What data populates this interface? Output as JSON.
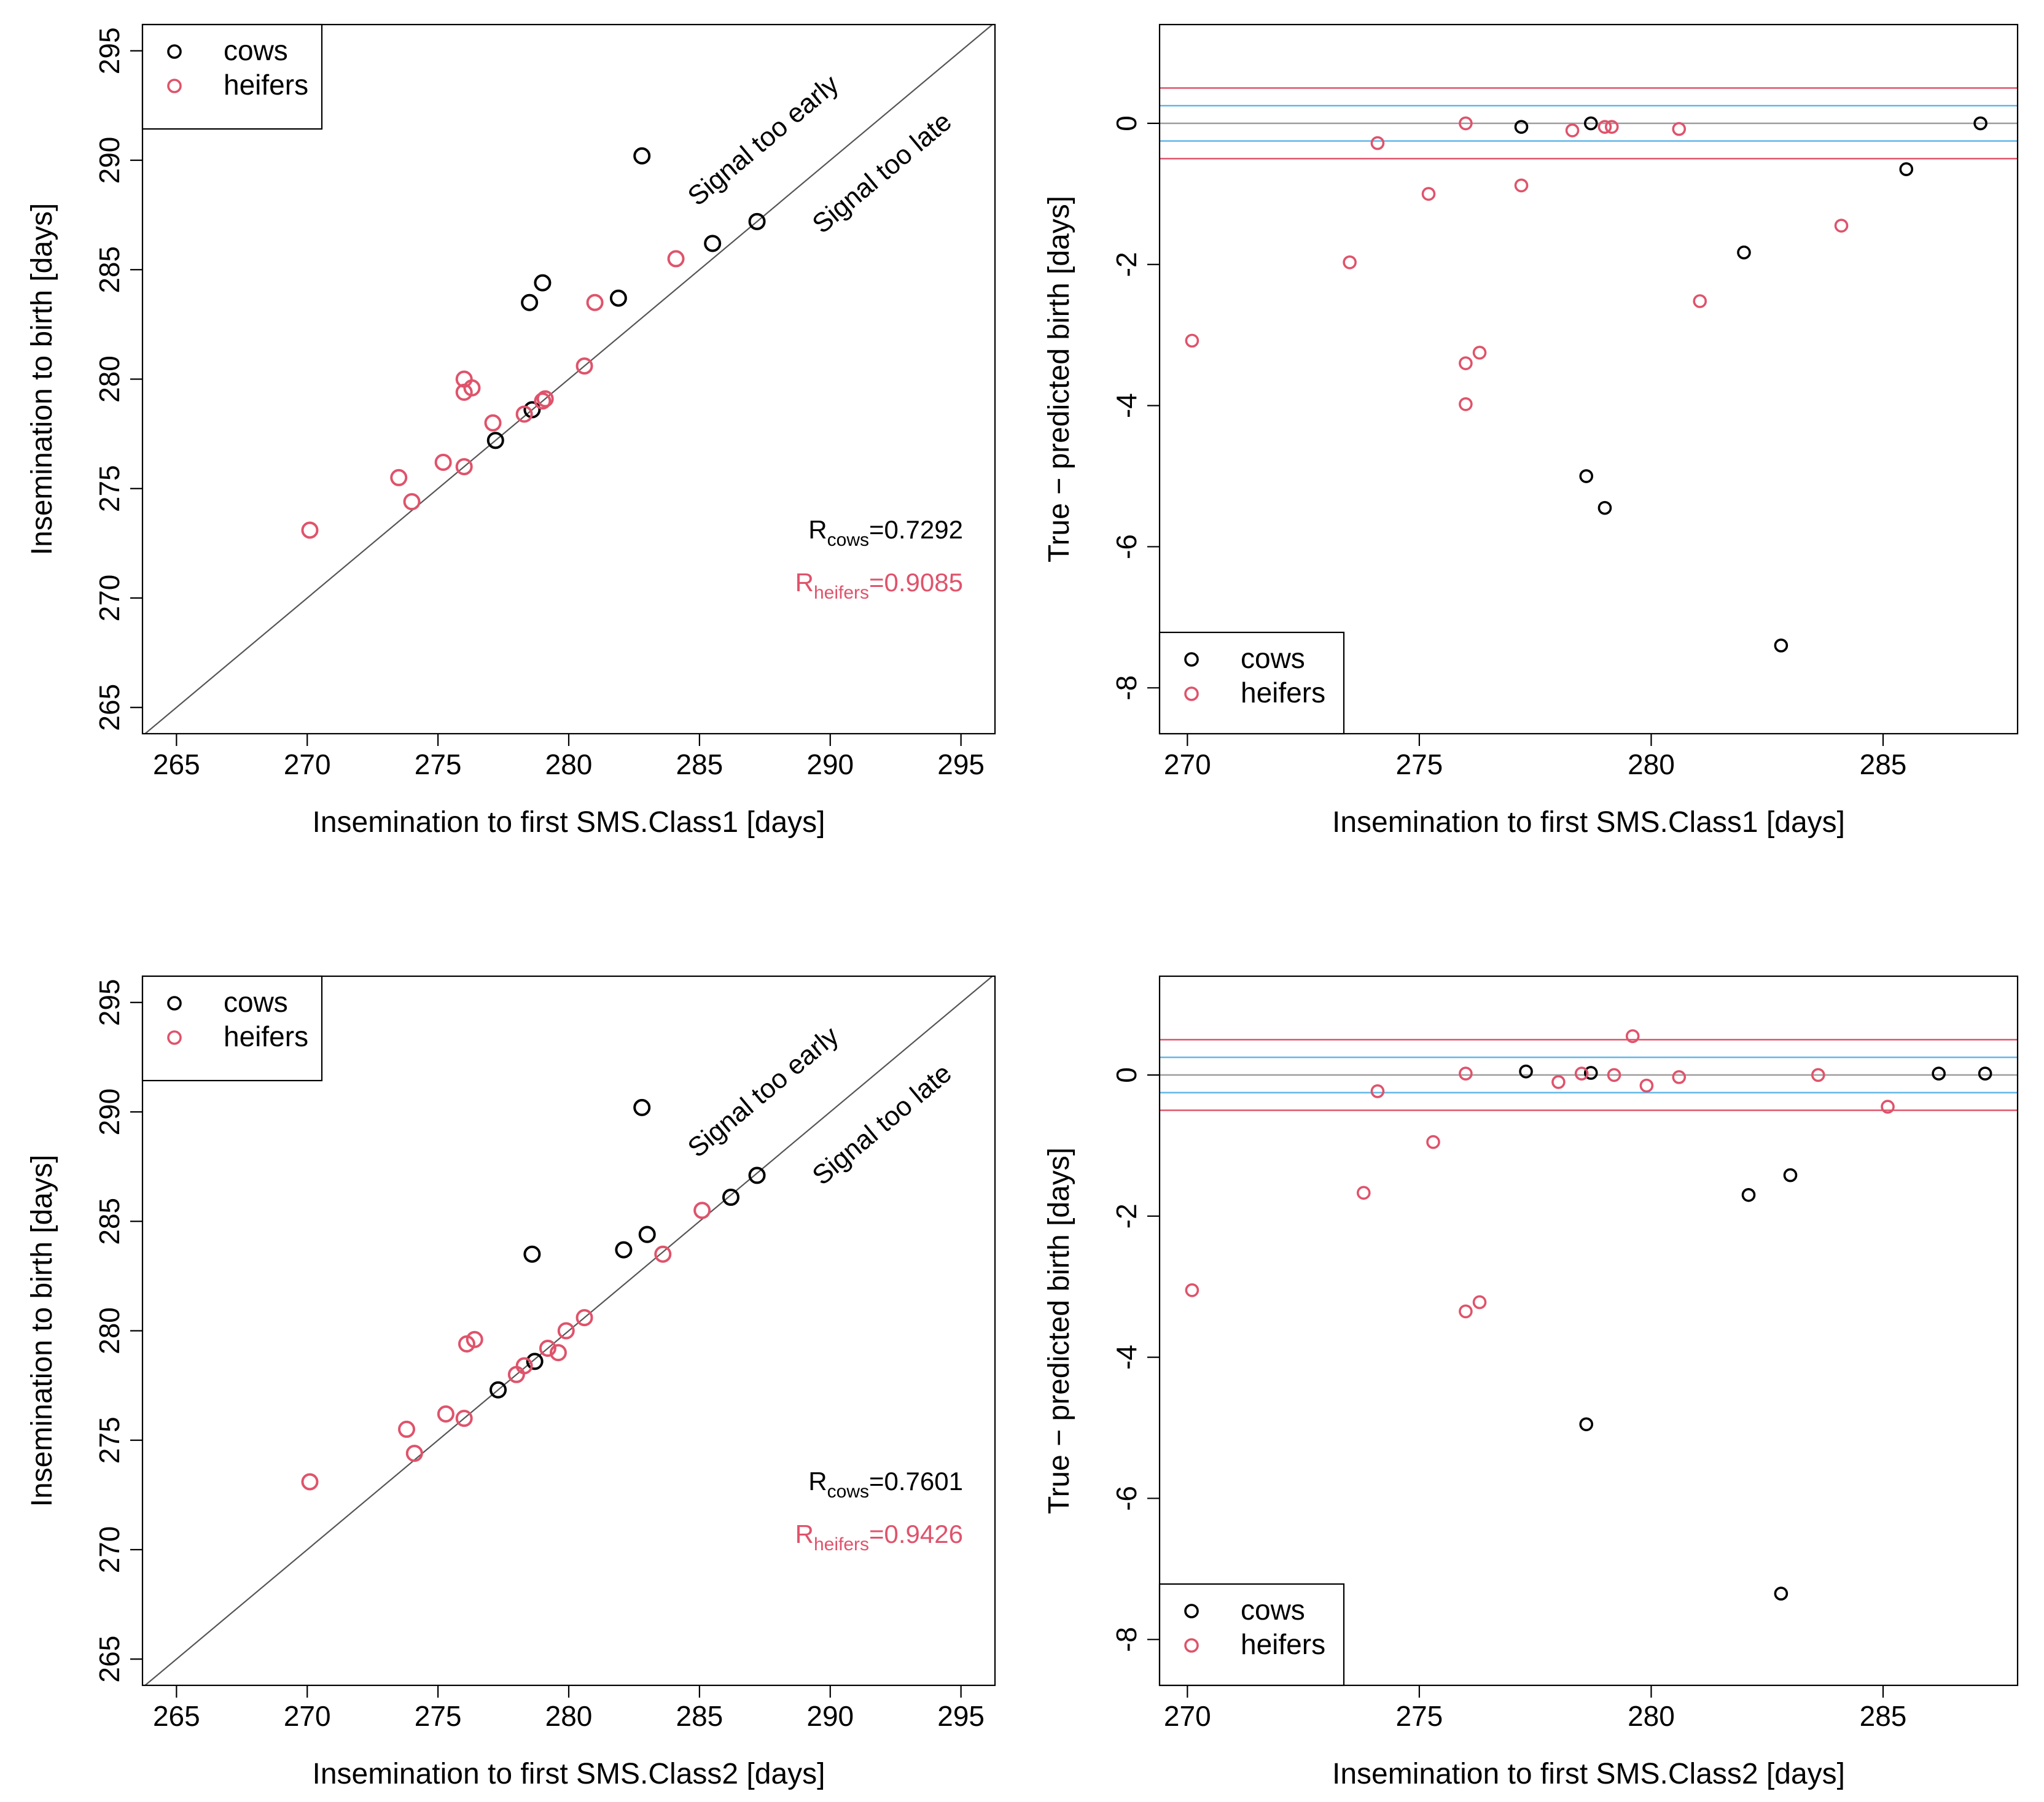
{
  "colors": {
    "cows": "#000000",
    "heifers": "#DF536B",
    "ref_line": "#555555",
    "inner_band": "#61B6E8",
    "outer_band": "#DF536B",
    "zero_line": "#9E9E9E"
  },
  "chart_data": [
    {
      "id": "scatter-class1",
      "type": "scatter",
      "xlabel": "Insemination to first SMS.Class1 [days]",
      "ylabel": "Insemination to birth [days]",
      "xlim": [
        263.7,
        296.3
      ],
      "ylim": [
        263.8,
        296.2
      ],
      "xticks": [
        265,
        270,
        275,
        280,
        285,
        290,
        295
      ],
      "yticks": [
        265,
        270,
        275,
        280,
        285,
        290,
        295
      ],
      "identity_line": true,
      "annotations": {
        "early": "Signal too early",
        "late": "Signal too late"
      },
      "legend": {
        "position": "top-left",
        "cows": "cows",
        "heifers": "heifers"
      },
      "stats": {
        "cows": {
          "sym": "R",
          "sub": "cows",
          "val": "=0.7292"
        },
        "heifers": {
          "sym": "R",
          "sub": "heifers",
          "val": "=0.9085"
        }
      },
      "series": [
        {
          "name": "cows",
          "points": [
            [
              282.8,
              290.2
            ],
            [
              285.5,
              286.2
            ],
            [
              287.2,
              287.2
            ],
            [
              279.0,
              284.4
            ],
            [
              278.5,
              283.5
            ],
            [
              281.9,
              283.7
            ],
            [
              278.6,
              278.6
            ],
            [
              277.2,
              277.2
            ]
          ]
        },
        {
          "name": "heifers",
          "points": [
            [
              284.1,
              285.5
            ],
            [
              281.0,
              283.5
            ],
            [
              280.6,
              280.6
            ],
            [
              276.0,
              280.0
            ],
            [
              276.3,
              279.6
            ],
            [
              276.0,
              279.4
            ],
            [
              279.1,
              279.1
            ],
            [
              279.0,
              279.0
            ],
            [
              277.1,
              278.0
            ],
            [
              278.3,
              278.4
            ],
            [
              275.2,
              276.2
            ],
            [
              276.0,
              276.0
            ],
            [
              273.5,
              275.5
            ],
            [
              274.0,
              274.4
            ],
            [
              270.1,
              273.1
            ]
          ]
        }
      ]
    },
    {
      "id": "residual-class1",
      "type": "scatter",
      "xlabel": "Insemination to first SMS.Class1 [days]",
      "ylabel": "True − predicted birth [days]",
      "xlim": [
        269.4,
        287.9
      ],
      "ylim": [
        -8.65,
        1.4
      ],
      "xticks": [
        270,
        275,
        280,
        285
      ],
      "yticks": [
        -8,
        -6,
        -4,
        -2,
        0
      ],
      "hlines": {
        "zero": 0,
        "inner": 0.25,
        "outer": 0.5
      },
      "legend": {
        "position": "bottom-left",
        "cows": "cows",
        "heifers": "heifers"
      },
      "series": [
        {
          "name": "cows",
          "points": [
            [
              277.2,
              -0.05
            ],
            [
              278.7,
              0.0
            ],
            [
              287.1,
              0.0
            ],
            [
              285.5,
              -0.65
            ],
            [
              282.0,
              -1.83
            ],
            [
              278.6,
              -5.0
            ],
            [
              279.0,
              -5.45
            ],
            [
              282.8,
              -7.4
            ]
          ]
        },
        {
          "name": "heifers",
          "points": [
            [
              276.0,
              0.0
            ],
            [
              279.0,
              -0.05
            ],
            [
              279.15,
              -0.05
            ],
            [
              278.3,
              -0.1
            ],
            [
              280.6,
              -0.08
            ],
            [
              274.1,
              -0.28
            ],
            [
              277.2,
              -0.88
            ],
            [
              275.2,
              -1.0
            ],
            [
              273.5,
              -1.97
            ],
            [
              284.1,
              -1.45
            ],
            [
              281.05,
              -2.52
            ],
            [
              270.1,
              -3.08
            ],
            [
              276.3,
              -3.25
            ],
            [
              276.0,
              -3.4
            ],
            [
              276.0,
              -3.98
            ]
          ]
        }
      ]
    },
    {
      "id": "scatter-class2",
      "type": "scatter",
      "xlabel": "Insemination to first SMS.Class2 [days]",
      "ylabel": "Insemination to birth [days]",
      "xlim": [
        263.7,
        296.3
      ],
      "ylim": [
        263.8,
        296.2
      ],
      "xticks": [
        265,
        270,
        275,
        280,
        285,
        290,
        295
      ],
      "yticks": [
        265,
        270,
        275,
        280,
        285,
        290,
        295
      ],
      "identity_line": true,
      "annotations": {
        "early": "Signal too early",
        "late": "Signal too late"
      },
      "legend": {
        "position": "top-left",
        "cows": "cows",
        "heifers": "heifers"
      },
      "stats": {
        "cows": {
          "sym": "R",
          "sub": "cows",
          "val": "=0.7601"
        },
        "heifers": {
          "sym": "R",
          "sub": "heifers",
          "val": "=0.9426"
        }
      },
      "series": [
        {
          "name": "cows",
          "points": [
            [
              282.8,
              290.2
            ],
            [
              287.2,
              287.1
            ],
            [
              286.2,
              286.1
            ],
            [
              283.0,
              284.4
            ],
            [
              282.1,
              283.7
            ],
            [
              278.6,
              283.5
            ],
            [
              278.7,
              278.6
            ],
            [
              277.3,
              277.3
            ]
          ]
        },
        {
          "name": "heifers",
          "points": [
            [
              285.1,
              285.5
            ],
            [
              283.6,
              283.5
            ],
            [
              280.6,
              280.6
            ],
            [
              279.9,
              280.0
            ],
            [
              276.4,
              279.6
            ],
            [
              276.1,
              279.4
            ],
            [
              279.2,
              279.2
            ],
            [
              279.6,
              279.0
            ],
            [
              278.0,
              278.0
            ],
            [
              278.3,
              278.4
            ],
            [
              275.3,
              276.2
            ],
            [
              276.0,
              276.0
            ],
            [
              273.8,
              275.5
            ],
            [
              274.1,
              274.4
            ],
            [
              270.1,
              273.1
            ]
          ]
        }
      ]
    },
    {
      "id": "residual-class2",
      "type": "scatter",
      "xlabel": "Insemination to first SMS.Class2 [days]",
      "ylabel": "True − predicted birth [days]",
      "xlim": [
        269.4,
        287.9
      ],
      "ylim": [
        -8.65,
        1.4
      ],
      "xticks": [
        270,
        275,
        280,
        285
      ],
      "yticks": [
        -8,
        -6,
        -4,
        -2,
        0
      ],
      "hlines": {
        "zero": 0,
        "inner": 0.25,
        "outer": 0.5
      },
      "legend": {
        "position": "bottom-left",
        "cows": "cows",
        "heifers": "heifers"
      },
      "series": [
        {
          "name": "cows",
          "points": [
            [
              277.3,
              0.05
            ],
            [
              278.7,
              0.03
            ],
            [
              286.2,
              0.02
            ],
            [
              287.2,
              0.02
            ],
            [
              283.0,
              -1.42
            ],
            [
              282.1,
              -1.7
            ],
            [
              278.6,
              -4.95
            ],
            [
              282.8,
              -7.35
            ]
          ]
        },
        {
          "name": "heifers",
          "points": [
            [
              279.6,
              0.55
            ],
            [
              276.0,
              0.02
            ],
            [
              278.5,
              0.02
            ],
            [
              279.2,
              0.0
            ],
            [
              280.6,
              -0.03
            ],
            [
              283.6,
              0.0
            ],
            [
              278.0,
              -0.1
            ],
            [
              279.9,
              -0.15
            ],
            [
              274.1,
              -0.23
            ],
            [
              275.3,
              -0.95
            ],
            [
              285.1,
              -0.45
            ],
            [
              273.8,
              -1.67
            ],
            [
              270.1,
              -3.05
            ],
            [
              276.3,
              -3.22
            ],
            [
              276.0,
              -3.35
            ]
          ]
        }
      ]
    }
  ]
}
